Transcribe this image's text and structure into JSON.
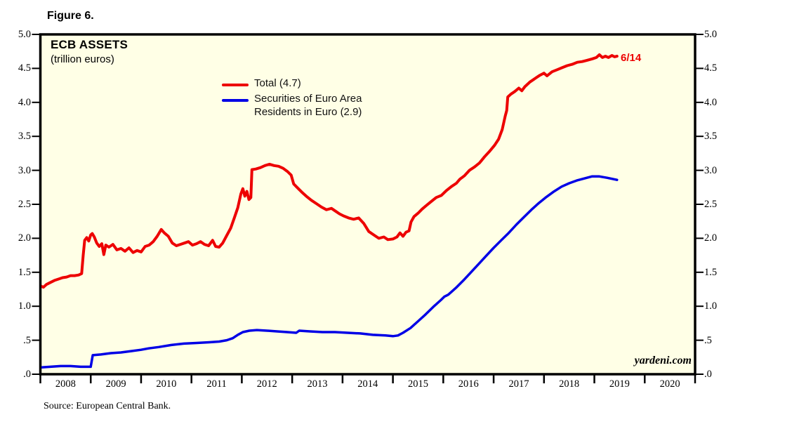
{
  "figure_label": "Figure 6.",
  "colors": {
    "total_line": "#ED0000",
    "securities_line": "#0000E6",
    "plot_background": "#FFFFE6",
    "axis": "#000000"
  },
  "legend": {
    "items": [
      {
        "color": "#ED0000",
        "line1": "Total (4.7)",
        "line2": ""
      },
      {
        "color": "#0000E6",
        "line1": "Securities of Euro Area",
        "line2": "Residents in Euro (2.9)"
      }
    ]
  },
  "chart_data": {
    "type": "line",
    "title": "ECB ASSETS",
    "subtitle": "(trillion euros)",
    "end_label": {
      "text": "6/14",
      "color": "#ED0000"
    },
    "watermark": "yardeni.com",
    "source": "Source: European Central Bank.",
    "y_axis": {
      "min": 0,
      "max": 5,
      "tick_interval": 0.5,
      "tick_labels_top_to_bottom": [
        "5.0",
        "4.5",
        "4.0",
        "3.5",
        "3.0",
        "2.5",
        "2.0",
        "1.5",
        "1.0",
        ".5",
        ".0"
      ],
      "shown_on_both_sides": true
    },
    "x_axis": {
      "start_year": 2008,
      "end_year": 2021,
      "year_labels": [
        "2008",
        "2009",
        "2010",
        "2011",
        "2012",
        "2013",
        "2014",
        "2015",
        "2016",
        "2017",
        "2018",
        "2019",
        "2020"
      ]
    },
    "series": [
      {
        "name": "Total (4.7)",
        "color": "#ED0000",
        "points": [
          [
            2008.0,
            1.3
          ],
          [
            2008.06,
            1.28
          ],
          [
            2008.12,
            1.32
          ],
          [
            2008.2,
            1.35
          ],
          [
            2008.28,
            1.38
          ],
          [
            2008.36,
            1.4
          ],
          [
            2008.44,
            1.42
          ],
          [
            2008.52,
            1.43
          ],
          [
            2008.6,
            1.45
          ],
          [
            2008.68,
            1.45
          ],
          [
            2008.76,
            1.46
          ],
          [
            2008.82,
            1.48
          ],
          [
            2008.85,
            1.75
          ],
          [
            2008.88,
            1.97
          ],
          [
            2008.92,
            2.01
          ],
          [
            2008.96,
            1.96
          ],
          [
            2009.0,
            2.05
          ],
          [
            2009.03,
            2.07
          ],
          [
            2009.07,
            2.02
          ],
          [
            2009.12,
            1.93
          ],
          [
            2009.17,
            1.88
          ],
          [
            2009.22,
            1.92
          ],
          [
            2009.26,
            1.76
          ],
          [
            2009.3,
            1.9
          ],
          [
            2009.36,
            1.87
          ],
          [
            2009.44,
            1.91
          ],
          [
            2009.52,
            1.83
          ],
          [
            2009.6,
            1.85
          ],
          [
            2009.68,
            1.81
          ],
          [
            2009.76,
            1.86
          ],
          [
            2009.84,
            1.79
          ],
          [
            2009.92,
            1.82
          ],
          [
            2010.0,
            1.8
          ],
          [
            2010.08,
            1.88
          ],
          [
            2010.16,
            1.9
          ],
          [
            2010.24,
            1.95
          ],
          [
            2010.32,
            2.03
          ],
          [
            2010.4,
            2.13
          ],
          [
            2010.46,
            2.08
          ],
          [
            2010.54,
            2.03
          ],
          [
            2010.62,
            1.93
          ],
          [
            2010.7,
            1.89
          ],
          [
            2010.78,
            1.91
          ],
          [
            2010.86,
            1.93
          ],
          [
            2010.94,
            1.95
          ],
          [
            2011.02,
            1.9
          ],
          [
            2011.1,
            1.92
          ],
          [
            2011.18,
            1.95
          ],
          [
            2011.26,
            1.91
          ],
          [
            2011.34,
            1.89
          ],
          [
            2011.42,
            1.97
          ],
          [
            2011.48,
            1.88
          ],
          [
            2011.55,
            1.87
          ],
          [
            2011.62,
            1.93
          ],
          [
            2011.7,
            2.04
          ],
          [
            2011.78,
            2.15
          ],
          [
            2011.85,
            2.3
          ],
          [
            2011.92,
            2.45
          ],
          [
            2011.98,
            2.65
          ],
          [
            2012.02,
            2.73
          ],
          [
            2012.06,
            2.62
          ],
          [
            2012.1,
            2.69
          ],
          [
            2012.14,
            2.57
          ],
          [
            2012.18,
            2.6
          ],
          [
            2012.2,
            3.01
          ],
          [
            2012.28,
            3.02
          ],
          [
            2012.37,
            3.04
          ],
          [
            2012.46,
            3.07
          ],
          [
            2012.55,
            3.09
          ],
          [
            2012.64,
            3.07
          ],
          [
            2012.73,
            3.06
          ],
          [
            2012.82,
            3.03
          ],
          [
            2012.91,
            2.98
          ],
          [
            2012.98,
            2.93
          ],
          [
            2013.03,
            2.8
          ],
          [
            2013.11,
            2.74
          ],
          [
            2013.19,
            2.68
          ],
          [
            2013.28,
            2.62
          ],
          [
            2013.38,
            2.56
          ],
          [
            2013.48,
            2.51
          ],
          [
            2013.58,
            2.46
          ],
          [
            2013.68,
            2.42
          ],
          [
            2013.78,
            2.44
          ],
          [
            2013.86,
            2.4
          ],
          [
            2013.94,
            2.36
          ],
          [
            2014.02,
            2.33
          ],
          [
            2014.12,
            2.3
          ],
          [
            2014.22,
            2.28
          ],
          [
            2014.32,
            2.3
          ],
          [
            2014.42,
            2.22
          ],
          [
            2014.52,
            2.1
          ],
          [
            2014.62,
            2.05
          ],
          [
            2014.72,
            2.0
          ],
          [
            2014.82,
            2.02
          ],
          [
            2014.9,
            1.98
          ],
          [
            2015.0,
            1.99
          ],
          [
            2015.08,
            2.02
          ],
          [
            2015.14,
            2.08
          ],
          [
            2015.2,
            2.03
          ],
          [
            2015.26,
            2.09
          ],
          [
            2015.32,
            2.11
          ],
          [
            2015.36,
            2.24
          ],
          [
            2015.42,
            2.32
          ],
          [
            2015.5,
            2.37
          ],
          [
            2015.58,
            2.43
          ],
          [
            2015.66,
            2.48
          ],
          [
            2015.76,
            2.54
          ],
          [
            2015.86,
            2.6
          ],
          [
            2015.96,
            2.63
          ],
          [
            2016.06,
            2.7
          ],
          [
            2016.16,
            2.76
          ],
          [
            2016.26,
            2.81
          ],
          [
            2016.33,
            2.87
          ],
          [
            2016.42,
            2.92
          ],
          [
            2016.52,
            3.0
          ],
          [
            2016.62,
            3.05
          ],
          [
            2016.72,
            3.11
          ],
          [
            2016.82,
            3.2
          ],
          [
            2016.92,
            3.28
          ],
          [
            2017.02,
            3.37
          ],
          [
            2017.1,
            3.46
          ],
          [
            2017.17,
            3.6
          ],
          [
            2017.23,
            3.8
          ],
          [
            2017.26,
            3.88
          ],
          [
            2017.28,
            4.08
          ],
          [
            2017.34,
            4.12
          ],
          [
            2017.42,
            4.16
          ],
          [
            2017.5,
            4.21
          ],
          [
            2017.56,
            4.17
          ],
          [
            2017.62,
            4.23
          ],
          [
            2017.72,
            4.3
          ],
          [
            2017.82,
            4.35
          ],
          [
            2017.92,
            4.4
          ],
          [
            2018.0,
            4.43
          ],
          [
            2018.06,
            4.39
          ],
          [
            2018.16,
            4.45
          ],
          [
            2018.26,
            4.48
          ],
          [
            2018.36,
            4.51
          ],
          [
            2018.46,
            4.54
          ],
          [
            2018.56,
            4.56
          ],
          [
            2018.66,
            4.59
          ],
          [
            2018.76,
            4.6
          ],
          [
            2018.86,
            4.62
          ],
          [
            2018.96,
            4.64
          ],
          [
            2019.04,
            4.66
          ],
          [
            2019.1,
            4.7
          ],
          [
            2019.16,
            4.66
          ],
          [
            2019.22,
            4.68
          ],
          [
            2019.28,
            4.66
          ],
          [
            2019.35,
            4.69
          ],
          [
            2019.4,
            4.67
          ],
          [
            2019.45,
            4.68
          ]
        ]
      },
      {
        "name": "Securities of Euro Area Residents in Euro (2.9)",
        "color": "#0000E6",
        "points": [
          [
            2008.0,
            0.1
          ],
          [
            2008.2,
            0.11
          ],
          [
            2008.4,
            0.12
          ],
          [
            2008.6,
            0.12
          ],
          [
            2008.8,
            0.11
          ],
          [
            2009.0,
            0.11
          ],
          [
            2009.04,
            0.28
          ],
          [
            2009.2,
            0.29
          ],
          [
            2009.4,
            0.31
          ],
          [
            2009.6,
            0.32
          ],
          [
            2009.8,
            0.34
          ],
          [
            2010.0,
            0.36
          ],
          [
            2010.15,
            0.38
          ],
          [
            2010.35,
            0.4
          ],
          [
            2010.6,
            0.43
          ],
          [
            2010.85,
            0.45
          ],
          [
            2011.1,
            0.46
          ],
          [
            2011.35,
            0.47
          ],
          [
            2011.55,
            0.48
          ],
          [
            2011.7,
            0.5
          ],
          [
            2011.82,
            0.53
          ],
          [
            2011.92,
            0.58
          ],
          [
            2012.02,
            0.62
          ],
          [
            2012.15,
            0.64
          ],
          [
            2012.3,
            0.65
          ],
          [
            2012.5,
            0.64
          ],
          [
            2012.7,
            0.63
          ],
          [
            2012.9,
            0.62
          ],
          [
            2013.08,
            0.61
          ],
          [
            2013.14,
            0.64
          ],
          [
            2013.35,
            0.63
          ],
          [
            2013.6,
            0.62
          ],
          [
            2013.85,
            0.62
          ],
          [
            2014.1,
            0.61
          ],
          [
            2014.35,
            0.6
          ],
          [
            2014.6,
            0.58
          ],
          [
            2014.85,
            0.57
          ],
          [
            2015.0,
            0.56
          ],
          [
            2015.1,
            0.57
          ],
          [
            2015.2,
            0.61
          ],
          [
            2015.35,
            0.68
          ],
          [
            2015.5,
            0.78
          ],
          [
            2015.65,
            0.88
          ],
          [
            2015.8,
            0.99
          ],
          [
            2015.95,
            1.09
          ],
          [
            2016.02,
            1.14
          ],
          [
            2016.1,
            1.17
          ],
          [
            2016.25,
            1.27
          ],
          [
            2016.4,
            1.38
          ],
          [
            2016.55,
            1.5
          ],
          [
            2016.7,
            1.62
          ],
          [
            2016.85,
            1.74
          ],
          [
            2017.0,
            1.86
          ],
          [
            2017.15,
            1.97
          ],
          [
            2017.3,
            2.08
          ],
          [
            2017.45,
            2.2
          ],
          [
            2017.6,
            2.31
          ],
          [
            2017.75,
            2.42
          ],
          [
            2017.9,
            2.52
          ],
          [
            2018.05,
            2.61
          ],
          [
            2018.2,
            2.69
          ],
          [
            2018.35,
            2.76
          ],
          [
            2018.5,
            2.81
          ],
          [
            2018.65,
            2.85
          ],
          [
            2018.8,
            2.88
          ],
          [
            2018.95,
            2.91
          ],
          [
            2019.1,
            2.91
          ],
          [
            2019.25,
            2.89
          ],
          [
            2019.45,
            2.86
          ]
        ]
      }
    ]
  }
}
